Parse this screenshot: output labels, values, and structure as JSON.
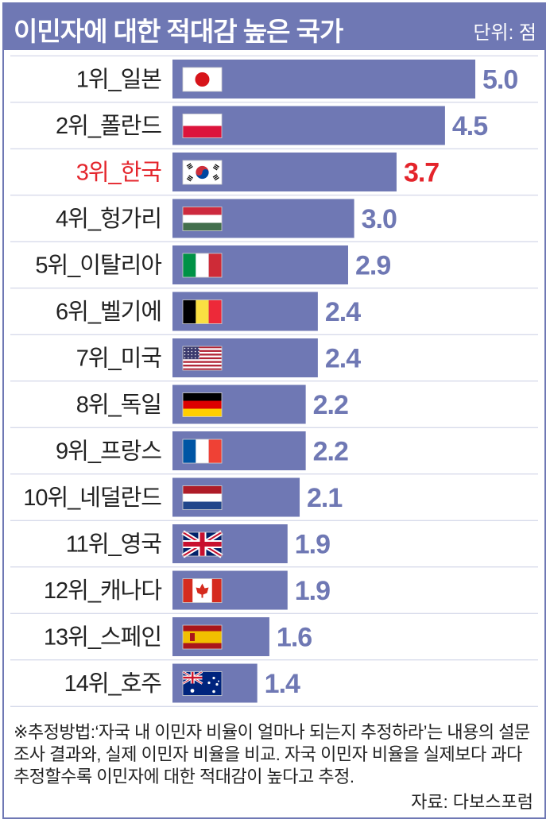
{
  "header": {
    "title": "이민자에 대한 적대감 높은 국가",
    "unit": "단위: 점"
  },
  "colors": {
    "bar": "#6f78b4",
    "value_text": "#6f78b4",
    "highlight": "#e4242b",
    "label_text": "#222222",
    "grid": "#c9cde4"
  },
  "chart_data": {
    "type": "bar",
    "orientation": "horizontal",
    "title": "이민자에 대한 적대감 높은 국가",
    "categories": [
      "1위_일본",
      "2위_폴란드",
      "3위_한국",
      "4위_헝가리",
      "5위_이탈리아",
      "6위_벨기에",
      "7위_미국",
      "8위_독일",
      "9위_프랑스",
      "10위_네덜란드",
      "11위_영국",
      "12위_캐나다",
      "13위_스페인",
      "14위_호주"
    ],
    "values": [
      5.0,
      4.5,
      3.7,
      3.0,
      2.9,
      2.4,
      2.4,
      2.2,
      2.2,
      2.1,
      1.9,
      1.9,
      1.6,
      1.4
    ],
    "value_labels": [
      "5.0",
      "4.5",
      "3.7",
      "3.0",
      "2.9",
      "2.4",
      "2.4",
      "2.2",
      "2.2",
      "2.1",
      "1.9",
      "1.9",
      "1.6",
      "1.4"
    ],
    "flags": [
      "japan-flag-icon",
      "poland-flag-icon",
      "korea-flag-icon",
      "hungary-flag-icon",
      "italy-flag-icon",
      "belgium-flag-icon",
      "usa-flag-icon",
      "germany-flag-icon",
      "france-flag-icon",
      "netherlands-flag-icon",
      "uk-flag-icon",
      "canada-flag-icon",
      "spain-flag-icon",
      "australia-flag-icon"
    ],
    "highlight_index": 2,
    "xlim": [
      0,
      5.0
    ],
    "grid": true
  },
  "note": "※추정방법:‘자국 내 이민자 비율이 얼마나 되는지 추정하라’는 내용의 설문조사 결과와, 실제 이민자 비율을 비교. 자국 이민자 비율을 실제보다 과다 추정할수록 이민자에 대한 적대감이 높다고 추정.",
  "source": "자료: 다보스포럼"
}
